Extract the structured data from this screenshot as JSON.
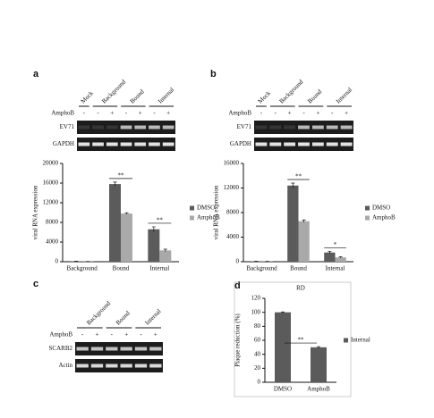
{
  "panels": [
    "a",
    "b",
    "c",
    "d"
  ],
  "gels": [
    {
      "headers": [
        "Mock",
        "Background",
        "Bound",
        "Internal"
      ],
      "treatment": "AmphoB",
      "signs": [
        "-",
        "-",
        "+",
        "-",
        "+",
        "-",
        "+"
      ],
      "rows": [
        "EV71",
        "GAPDH"
      ]
    },
    {
      "headers": [
        "Mock",
        "Background",
        "Bound",
        "Internal"
      ],
      "treatment": "AmphoB",
      "signs": [
        "-",
        "-",
        "+",
        "-",
        "+",
        "-",
        "+"
      ],
      "rows": [
        "EV71",
        "GAPDH"
      ]
    },
    {
      "headers": [
        "Background",
        "Bound",
        "Internal"
      ],
      "treatment": "AmphoB",
      "signs": [
        "-",
        "+",
        "-",
        "+",
        "-",
        "+"
      ],
      "rows": [
        "SCARB2",
        "Actin"
      ]
    }
  ],
  "chart_data": [
    {
      "type": "bar",
      "ylabel": "viral RNA expression",
      "categories": [
        "Background",
        "Bound",
        "Internal"
      ],
      "series": [
        {
          "name": "DMSO",
          "color": "#5b5b5b",
          "values": [
            100,
            15800,
            6600
          ],
          "errors": [
            20,
            400,
            500
          ]
        },
        {
          "name": "AmphoB",
          "color": "#a9a9a9",
          "values": [
            50,
            9800,
            2300
          ],
          "errors": [
            10,
            150,
            250
          ]
        }
      ],
      "ylim": [
        0,
        20000
      ],
      "yticks": [
        0,
        4000,
        8000,
        12000,
        16000,
        20000
      ],
      "annotations": [
        {
          "text": "**",
          "category": 1
        },
        {
          "text": "**",
          "category": 2
        }
      ]
    },
    {
      "type": "bar",
      "ylabel": "viral RNA expression",
      "categories": [
        "Background",
        "Bound",
        "Internal"
      ],
      "series": [
        {
          "name": "DMSO",
          "color": "#5b5b5b",
          "values": [
            80,
            12400,
            1500
          ],
          "errors": [
            20,
            400,
            200
          ]
        },
        {
          "name": "AmphoB",
          "color": "#a9a9a9",
          "values": [
            40,
            6600,
            700
          ],
          "errors": [
            10,
            200,
            100
          ]
        }
      ],
      "ylim": [
        0,
        16000
      ],
      "yticks": [
        0,
        4000,
        8000,
        12000,
        16000
      ],
      "annotations": [
        {
          "text": "**",
          "category": 1
        },
        {
          "text": "*",
          "category": 2
        }
      ]
    },
    {
      "type": "bar",
      "title": "RD",
      "ylabel": "Plaque reduction (%)",
      "categories": [
        "DMSO",
        "AmphoB"
      ],
      "series": [
        {
          "name": "Internal",
          "color": "#5b5b5b",
          "values": [
            100,
            50
          ],
          "errors": [
            0.5,
            1
          ]
        }
      ],
      "ylim": [
        0,
        120
      ],
      "yticks": [
        0,
        20,
        40,
        60,
        80,
        100,
        120
      ],
      "annotations": [
        {
          "text": "**",
          "category": 0.5
        }
      ]
    }
  ]
}
